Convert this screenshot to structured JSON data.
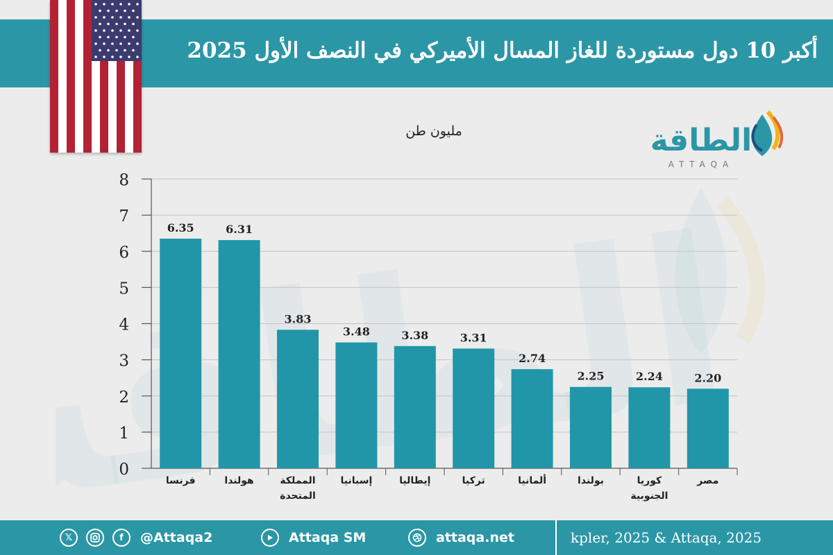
{
  "header": {
    "title": "أكبر 10 دول مستوردة للغاز المسال الأميركي في النصف الأول 2025"
  },
  "logo": {
    "arabic": "الطاقة",
    "latin": "ATTAQA"
  },
  "chart_data": {
    "type": "bar",
    "title": "أكبر 10 دول مستوردة للغاز المسال الأميركي في النصف الأول 2025",
    "ylabel": "مليون طن",
    "xlabel": "",
    "categories": [
      [
        "فرنسا"
      ],
      [
        "هولندا"
      ],
      [
        "المملكة",
        "المتحدة"
      ],
      [
        "إسبانيا"
      ],
      [
        "إيطاليا"
      ],
      [
        "تركيا"
      ],
      [
        "ألمانيا"
      ],
      [
        "بولندا"
      ],
      [
        "كوريا",
        "الجنوبية"
      ],
      [
        "مصر"
      ]
    ],
    "values": [
      6.35,
      6.31,
      3.83,
      3.48,
      3.38,
      3.31,
      2.74,
      2.25,
      2.24,
      2.2
    ],
    "value_labels": [
      "6.35",
      "6.31",
      "3.83",
      "3.48",
      "3.38",
      "3.31",
      "2.74",
      "2.25",
      "2.24",
      "2.20"
    ],
    "ylim": [
      0,
      8
    ],
    "yticks": [
      "0",
      "1",
      "2",
      "3",
      "4",
      "5",
      "6",
      "7",
      "8"
    ],
    "bar_color": "#2196a8",
    "grid": true
  },
  "footer": {
    "icons": [
      "x-icon",
      "instagram-icon",
      "facebook-icon",
      "youtube-icon",
      "dribbble-icon"
    ],
    "social_handle": "@Attaqa2",
    "youtube": "Attaqa SM",
    "website": "attaqa.net",
    "source": "kpler, 2025 & Attaqa, 2025"
  },
  "colors": {
    "header": "#2b96a6",
    "footer": "#2b96a6",
    "background": "#ececec"
  }
}
